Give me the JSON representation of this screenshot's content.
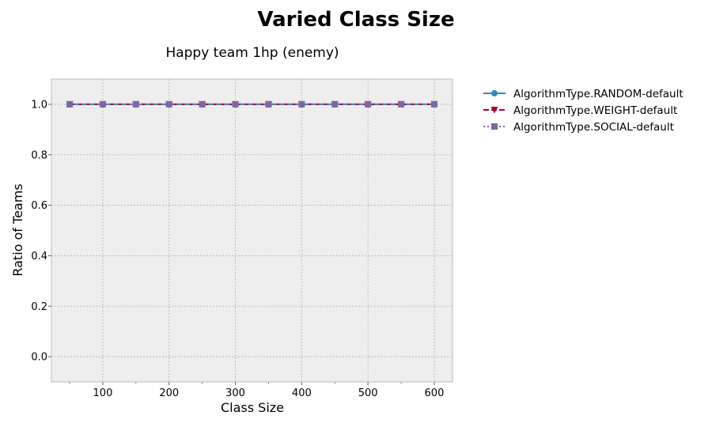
{
  "figure_title": "Varied Class Size",
  "chart_data": {
    "type": "line",
    "title": "Happy team 1hp (enemy)",
    "xlabel": "Class Size",
    "ylabel": "Ratio of Teams",
    "xlim": [
      22.5,
      627.5
    ],
    "ylim": [
      -0.1,
      1.1
    ],
    "xticks": [
      100,
      200,
      300,
      400,
      500,
      600
    ],
    "yticks": [
      0.0,
      0.2,
      0.4,
      0.6,
      0.8,
      1.0
    ],
    "xtick_labels": [
      "100",
      "200",
      "300",
      "400",
      "500",
      "600"
    ],
    "ytick_labels": [
      "0.0",
      "0.2",
      "0.4",
      "0.6",
      "0.8",
      "1.0"
    ],
    "grid": true,
    "legend_position": "outside-right",
    "x": [
      50,
      100,
      150,
      200,
      250,
      300,
      350,
      400,
      450,
      500,
      550,
      600
    ],
    "series": [
      {
        "name": "AlgorithmType.RANDOM-default",
        "values": [
          1,
          1,
          1,
          1,
          1,
          1,
          1,
          1,
          1,
          1,
          1,
          1
        ],
        "color": "#348ABD",
        "line_style": "solid",
        "marker": "circle"
      },
      {
        "name": "AlgorithmType.WEIGHT-default",
        "values": [
          1,
          1,
          1,
          1,
          1,
          1,
          1,
          1,
          1,
          1,
          1,
          1
        ],
        "color": "#A60628",
        "line_style": "dashed",
        "marker": "triangle-down"
      },
      {
        "name": "AlgorithmType.SOCIAL-default",
        "values": [
          1,
          1,
          1,
          1,
          1,
          1,
          1,
          1,
          1,
          1,
          1,
          1
        ],
        "color": "#7A68A6",
        "line_style": "dotted",
        "marker": "square"
      }
    ],
    "colors": {
      "plot_background": "#EEEEEE",
      "grid": "#B2B2B2",
      "axes_edge": "#BCBCBC"
    }
  }
}
